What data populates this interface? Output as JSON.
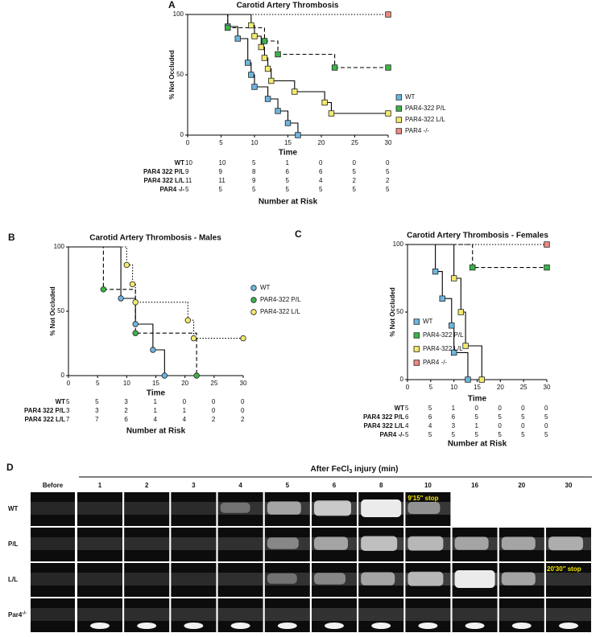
{
  "chart_data": [
    {
      "type": "survival",
      "panel": "A",
      "title": "Carotid Artery Thrombosis",
      "x_label": "Time",
      "y_label": "% Not Occluded",
      "xlim": [
        0,
        30
      ],
      "xticks": [
        0,
        5,
        10,
        15,
        20,
        25,
        30
      ],
      "ylim": [
        0,
        100
      ],
      "yticks": [
        0,
        50,
        100
      ],
      "marker": "square",
      "legend": "right",
      "series": [
        {
          "name": "WT",
          "color": "#6db6e0",
          "line_style": "solid",
          "x": [
            0,
            6,
            7.5,
            9,
            9.5,
            10,
            12,
            13.5,
            15,
            16.5
          ],
          "values": [
            100,
            90,
            80,
            60,
            50,
            40,
            30,
            20,
            10,
            0
          ]
        },
        {
          "name": "PAR4-322 P/L",
          "color": "#3cb44a",
          "line_style": "dashed",
          "x": [
            0,
            6,
            11.5,
            13.5,
            22,
            30
          ],
          "values": [
            100,
            89,
            78,
            67,
            56,
            56
          ]
        },
        {
          "name": "PAR4-322 L/L",
          "color": "#f3ea6e",
          "line_style": "solid",
          "x": [
            0,
            9.5,
            10,
            11,
            11.5,
            12,
            12.5,
            16,
            20.5,
            21.5,
            30
          ],
          "values": [
            100,
            91,
            82,
            73,
            64,
            55,
            45,
            36,
            27,
            18,
            18
          ]
        },
        {
          "name": "PAR4 -/-",
          "color": "#f08a82",
          "line_style": "dotted",
          "x": [
            0,
            30
          ],
          "values": [
            100,
            100
          ]
        }
      ],
      "risk_table": {
        "title": "Number at Risk",
        "rows": [
          {
            "label": "WT",
            "values": [
              10,
              10,
              5,
              1,
              0,
              0,
              0
            ]
          },
          {
            "label": "PAR4 322 P/L",
            "values": [
              9,
              9,
              8,
              6,
              6,
              5,
              5
            ]
          },
          {
            "label": "PAR4 322 L/L",
            "values": [
              11,
              11,
              9,
              5,
              4,
              2,
              2
            ]
          },
          {
            "label": "PAR4 -/-",
            "values": [
              5,
              5,
              5,
              5,
              5,
              5,
              5
            ]
          }
        ]
      }
    },
    {
      "type": "survival",
      "panel": "B",
      "title": "Carotid Artery Thrombosis - Males",
      "x_label": "Time",
      "y_label": "% Not Occluded",
      "xlim": [
        0,
        30
      ],
      "xticks": [
        0,
        5,
        10,
        15,
        20,
        25,
        30
      ],
      "ylim": [
        0,
        100
      ],
      "yticks": [
        0,
        50,
        100
      ],
      "marker": "circle",
      "legend": "right",
      "series": [
        {
          "name": "WT",
          "color": "#6db6e0",
          "line_style": "solid",
          "x": [
            0,
            9,
            11.5,
            14.5,
            16.5
          ],
          "values": [
            100,
            60,
            40,
            20,
            0
          ]
        },
        {
          "name": "PAR4-322 P/L",
          "color": "#3cb44a",
          "line_style": "dashed",
          "x": [
            0,
            6,
            11.5,
            22
          ],
          "values": [
            100,
            67,
            33,
            0
          ]
        },
        {
          "name": "PAR4-322 L/L",
          "color": "#f3ea6e",
          "line_style": "dotted",
          "x": [
            0,
            10,
            11,
            11.5,
            20.5,
            21.5,
            30
          ],
          "values": [
            100,
            86,
            71,
            57,
            43,
            29,
            29
          ]
        }
      ],
      "risk_table": {
        "title": "Number at Risk",
        "rows": [
          {
            "label": "WT",
            "values": [
              5,
              5,
              3,
              1,
              0,
              0,
              0
            ]
          },
          {
            "label": "PAR4 322 P/L",
            "values": [
              3,
              3,
              2,
              1,
              1,
              0,
              0
            ]
          },
          {
            "label": "PAR4 322 L/L",
            "values": [
              7,
              7,
              6,
              4,
              4,
              2,
              2
            ]
          }
        ]
      }
    },
    {
      "type": "survival",
      "panel": "C",
      "title": "Carotid Artery Thrombosis - Females",
      "x_label": "Time",
      "y_label": "% Not Occluded",
      "xlim": [
        0,
        30
      ],
      "xticks": [
        0,
        5,
        10,
        15,
        20,
        25,
        30
      ],
      "ylim": [
        0,
        100
      ],
      "yticks": [
        0,
        50,
        100
      ],
      "marker": "square",
      "legend": "right",
      "series": [
        {
          "name": "WT",
          "color": "#6db6e0",
          "line_style": "solid",
          "x": [
            0,
            6,
            7.5,
            9.5,
            10,
            13
          ],
          "values": [
            100,
            80,
            60,
            40,
            20,
            0
          ]
        },
        {
          "name": "PAR4-322 P/L",
          "color": "#3cb44a",
          "line_style": "dashed",
          "x": [
            0,
            14,
            30
          ],
          "values": [
            100,
            83,
            83
          ]
        },
        {
          "name": "PAR4-322 L/L",
          "color": "#f3ea6e",
          "line_style": "solid",
          "x": [
            0,
            10,
            11.5,
            12.5,
            16
          ],
          "values": [
            100,
            75,
            50,
            25,
            0
          ]
        },
        {
          "name": "PAR4 -/-",
          "color": "#f08a82",
          "line_style": "dotted",
          "x": [
            0,
            30
          ],
          "values": [
            100,
            100
          ]
        }
      ],
      "risk_table": {
        "title": "Number at Risk",
        "rows": [
          {
            "label": "WT",
            "values": [
              5,
              5,
              1,
              0,
              0,
              0,
              0
            ]
          },
          {
            "label": "PAR4 322 P/L",
            "values": [
              6,
              6,
              6,
              5,
              5,
              5,
              5
            ]
          },
          {
            "label": "PAR4 322 L/L",
            "values": [
              4,
              4,
              3,
              1,
              0,
              0,
              0
            ]
          },
          {
            "label": "PAR4 -/-",
            "values": [
              5,
              5,
              5,
              5,
              5,
              5,
              5
            ]
          }
        ]
      }
    }
  ],
  "panel_d": {
    "label": "D",
    "title_parts": [
      "After FeCl",
      "3",
      " injury (min)"
    ],
    "columns": [
      "Before",
      "1",
      "2",
      "3",
      "4",
      "5",
      "6",
      "8",
      "10",
      "16",
      "20",
      "30"
    ],
    "rows": [
      {
        "label_parts": [
          "WT"
        ]
      },
      {
        "label_parts": [
          "P/L"
        ]
      },
      {
        "label_parts": [
          "L/L"
        ]
      },
      {
        "label_parts": [
          "Par4",
          "-/-"
        ]
      }
    ],
    "annotations": [
      "9'15'' stop",
      "20'30'' stop"
    ]
  }
}
